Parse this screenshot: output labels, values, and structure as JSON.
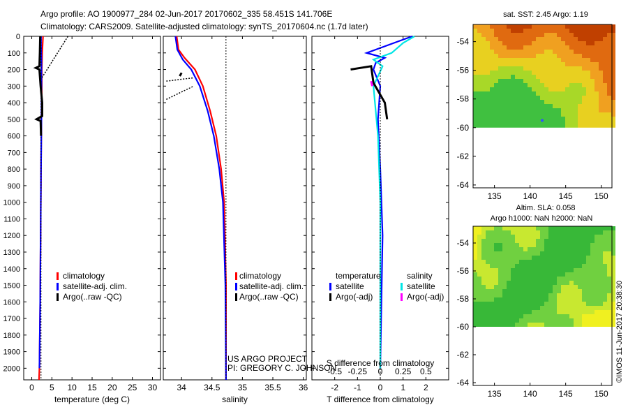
{
  "header": {
    "line1": "Argo profile: AO 1900977_284 02-Jun-2017 20170602_335 58.451S 141.706E",
    "line2": "Climatology: CARS2009. Satellite-adjusted climatology: synTS_20170604.nc (1.7d later)"
  },
  "colors": {
    "climatology": "#ff0000",
    "satellite": "#0000ff",
    "argo": "#000000",
    "sat_salinity": "#00e5e5",
    "argo_adj_s": "#ff00ff"
  },
  "chart_data": [
    {
      "type": "line",
      "name": "temperature-profile",
      "xlabel": "temperature (deg C)",
      "xlim": [
        -2,
        32
      ],
      "ylim": [
        2070,
        0
      ],
      "xticks": [
        0,
        5,
        10,
        15,
        20,
        25,
        30
      ],
      "yticks": [
        0,
        100,
        200,
        300,
        400,
        500,
        600,
        700,
        800,
        900,
        1000,
        1100,
        1200,
        1300,
        1400,
        1500,
        1600,
        1700,
        1800,
        1900,
        2000
      ],
      "legend": [
        "climatology",
        "satellite-adj. clim.",
        "Argo(..raw -QC)"
      ],
      "series": [
        {
          "name": "climatology",
          "color": "#ff0000",
          "points": [
            [
              2.8,
              0
            ],
            [
              2.7,
              50
            ],
            [
              2.6,
              100
            ],
            [
              2.5,
              200
            ],
            [
              2.5,
              300
            ],
            [
              2.4,
              500
            ],
            [
              2.3,
              800
            ],
            [
              2.2,
              1200
            ],
            [
              2.1,
              1600
            ],
            [
              1.9,
              2000
            ],
            [
              1.8,
              2070
            ]
          ]
        },
        {
          "name": "satellite-adj. clim.",
          "color": "#0000ff",
          "points": [
            [
              2.3,
              0
            ],
            [
              2.3,
              60
            ],
            [
              2.4,
              150
            ],
            [
              2.4,
              300
            ],
            [
              2.4,
              500
            ],
            [
              2.3,
              800
            ],
            [
              2.2,
              1200
            ],
            [
              2.1,
              1600
            ],
            [
              1.9,
              2000
            ]
          ]
        },
        {
          "name": "Argo(..raw -QC)",
          "color": "#000000",
          "points": [
            [
              2.1,
              0
            ],
            [
              2.0,
              100
            ],
            [
              1.9,
              180
            ],
            [
              1.0,
              190
            ],
            [
              1.9,
              200
            ],
            [
              2.2,
              300
            ],
            [
              2.6,
              400
            ],
            [
              2.6,
              480
            ],
            [
              1.2,
              500
            ],
            [
              2.2,
              510
            ],
            [
              2.3,
              600
            ]
          ]
        }
      ]
    },
    {
      "type": "line",
      "name": "salinity-profile",
      "xlabel": "salinity",
      "xlim": [
        33.7,
        36.05
      ],
      "ylim": [
        2070,
        0
      ],
      "xticks": [
        34,
        34.5,
        35,
        35.5,
        36
      ],
      "legend": [
        "climatology",
        "satellite-adj. clim.",
        "Argo(..raw -QC)"
      ],
      "annotations": [
        "US ARGO PROJECT",
        "PI: GREGORY C. JOHNSON"
      ],
      "series": [
        {
          "name": "climatology",
          "color": "#ff0000",
          "points": [
            [
              33.92,
              0
            ],
            [
              33.95,
              80
            ],
            [
              34.05,
              130
            ],
            [
              34.22,
              200
            ],
            [
              34.35,
              300
            ],
            [
              34.47,
              450
            ],
            [
              34.57,
              600
            ],
            [
              34.65,
              800
            ],
            [
              34.7,
              1000
            ],
            [
              34.73,
              1500
            ],
            [
              34.73,
              2070
            ]
          ]
        },
        {
          "name": "satellite-adj. clim.",
          "color": "#0000ff",
          "points": [
            [
              33.9,
              0
            ],
            [
              33.93,
              80
            ],
            [
              34.02,
              140
            ],
            [
              34.16,
              200
            ],
            [
              34.3,
              300
            ],
            [
              34.43,
              450
            ],
            [
              34.53,
              600
            ],
            [
              34.62,
              800
            ],
            [
              34.68,
              1000
            ],
            [
              34.72,
              1500
            ],
            [
              34.73,
              2070
            ]
          ]
        },
        {
          "name": "Argo(..raw -QC)",
          "color": "#000000",
          "points": [
            [
              34.0,
              220
            ],
            [
              33.97,
              240
            ]
          ]
        }
      ]
    },
    {
      "type": "line",
      "name": "difference-profile",
      "xlabel": "T difference from climatology",
      "xlim": [
        -3,
        3
      ],
      "ylim": [
        2070,
        0
      ],
      "xticks": [
        -2,
        -1,
        0,
        1,
        2
      ],
      "x2label": "S difference from climatology",
      "x2ticks": [
        "-0.5",
        "-0.25",
        "0",
        "0.25",
        "0.5"
      ],
      "legend": {
        "temperature": [
          "satellite",
          "Argo(-adj)"
        ],
        "salinity": [
          "satellite",
          "Argo(-adj)"
        ]
      },
      "series": [
        {
          "name": "temperature satellite",
          "color": "#0000ff",
          "points": [
            [
              1.4,
              0
            ],
            [
              0.8,
              30
            ],
            [
              -0.6,
              100
            ],
            [
              0.2,
              130
            ],
            [
              -0.2,
              160
            ],
            [
              -0.3,
              200
            ],
            [
              0.0,
              300
            ],
            [
              -0.1,
              500
            ],
            [
              0.0,
              800
            ],
            [
              0.1,
              1200
            ],
            [
              0.05,
              1600
            ],
            [
              0.0,
              2000
            ]
          ]
        },
        {
          "name": "salinity satellite",
          "color": "#00e5e5",
          "points": [
            [
              1.5,
              0
            ],
            [
              1.0,
              40
            ],
            [
              0.5,
              100
            ],
            [
              -0.3,
              140
            ],
            [
              0.1,
              180
            ],
            [
              -0.3,
              300
            ],
            [
              -0.1,
              600
            ],
            [
              0.0,
              1000
            ],
            [
              0.0,
              1500
            ],
            [
              0.0,
              2000
            ]
          ]
        },
        {
          "name": "temperature Argo(-adj)",
          "color": "#000000",
          "points": [
            [
              -1.3,
              200
            ],
            [
              -0.4,
              180
            ],
            [
              -0.3,
              280
            ],
            [
              0.2,
              400
            ],
            [
              0.3,
              500
            ]
          ]
        }
      ]
    },
    {
      "type": "heatmap",
      "name": "sst-map",
      "title": "sat. SST: 2.45 Argo: 1.19",
      "xticks": [
        135,
        140,
        145,
        150
      ],
      "yticks": [
        -54,
        -56,
        -58,
        -60,
        -62,
        -64
      ]
    },
    {
      "type": "heatmap",
      "name": "sla-map",
      "title": "Altim. SLA: 0.058",
      "subtitle": "Argo h1000: NaN h2000: NaN",
      "xticks": [
        135,
        140,
        145,
        150
      ],
      "yticks": [
        -54,
        -56,
        -58,
        -60,
        -62,
        -64
      ]
    }
  ],
  "side_stamp": "©IMOS 11-Jun-2017 20:38:30"
}
